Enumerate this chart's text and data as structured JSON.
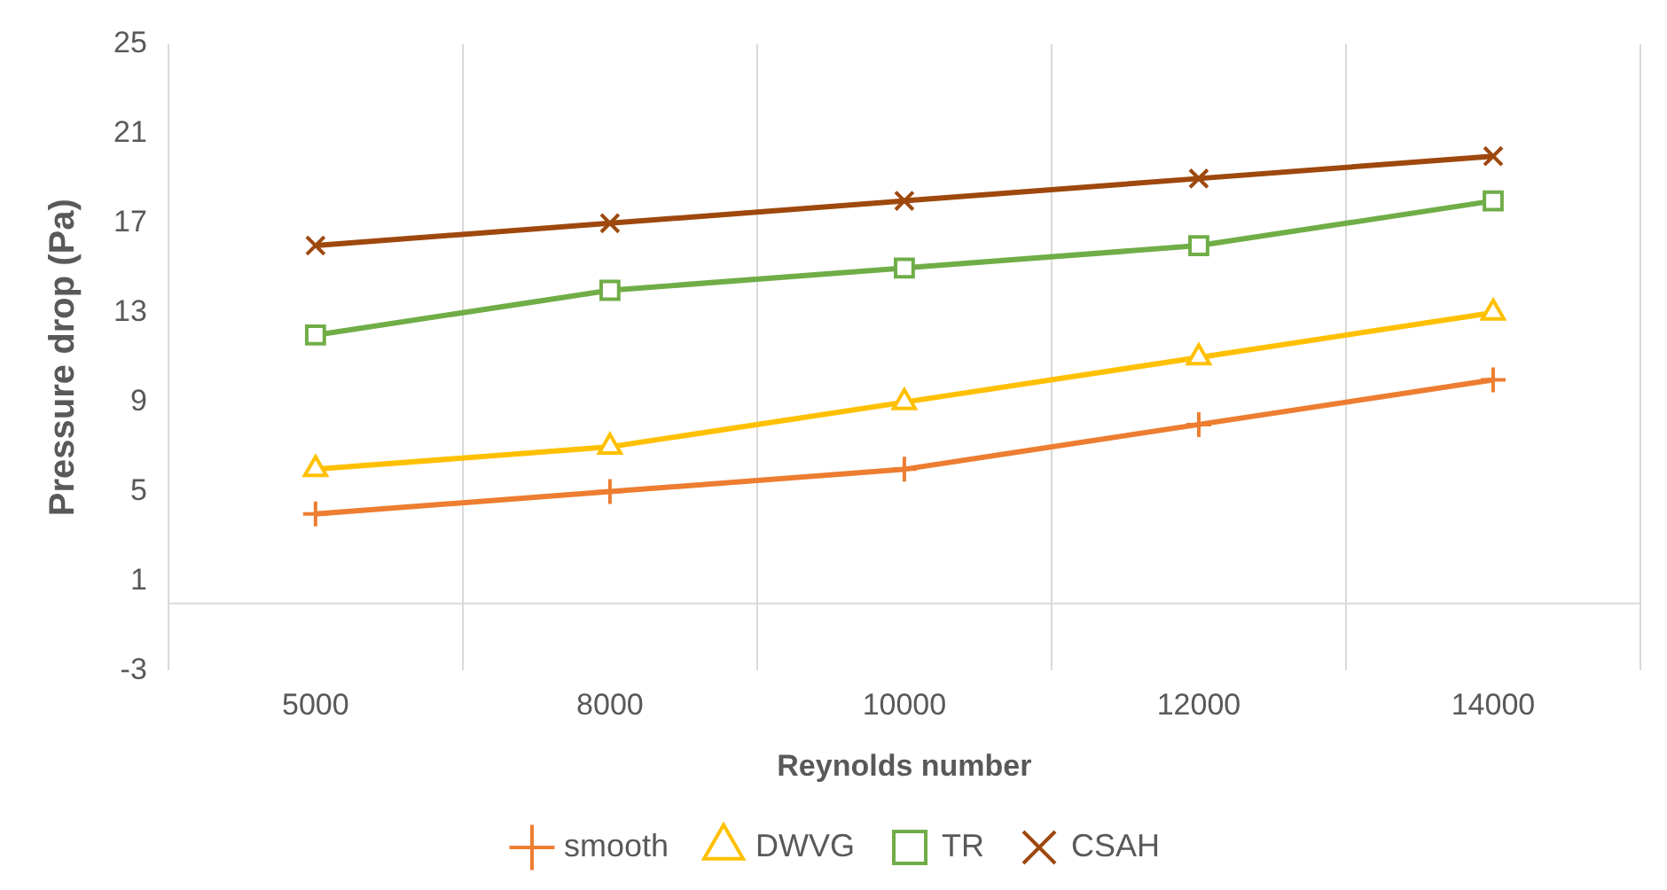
{
  "chart_data": {
    "type": "line",
    "xlabel": "Reynolds number",
    "ylabel": "Pressure drop (Pa)",
    "categories": [
      "5000",
      "8000",
      "10000",
      "12000",
      "14000"
    ],
    "series": [
      {
        "name": "smooth",
        "color": "#ed7d31",
        "marker": "cross",
        "values": [
          4,
          5,
          6,
          8,
          10
        ]
      },
      {
        "name": "DWVG",
        "color": "#ffc000",
        "marker": "triangle",
        "values": [
          6,
          7,
          9,
          11,
          13
        ]
      },
      {
        "name": "TR",
        "color": "#70ad47",
        "marker": "square",
        "values": [
          12,
          14,
          15,
          16,
          18
        ]
      },
      {
        "name": "CSAH",
        "color": "#9e480e",
        "marker": "x",
        "values": [
          16,
          17,
          18,
          19,
          20
        ]
      }
    ],
    "ylim": [
      -3,
      25
    ],
    "yticks": [
      -3,
      1,
      5,
      9,
      13,
      17,
      21,
      25
    ],
    "grid": "x",
    "legend": "bottom",
    "line_style": "solid"
  }
}
